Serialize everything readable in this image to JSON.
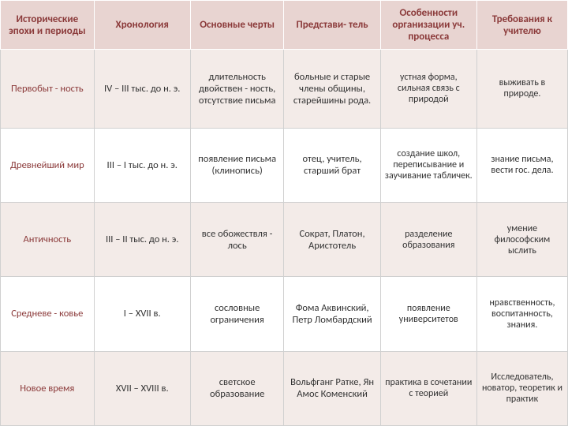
{
  "table": {
    "columns": [
      "Исторические эпохи и периоды",
      "Хронология",
      "Основные черты",
      "Представи- тель",
      "Особенности организации уч. процесса",
      "Требования к учителю"
    ],
    "col_widths": [
      "16.5%",
      "17%",
      "16.5%",
      "17%",
      "17%",
      "16%"
    ],
    "header_bg": "#e8d4d1",
    "header_color": "#8b3a3a",
    "row_even_bg": "#f3ebe8",
    "row_odd_bg": "#ffffff",
    "col0_color": "#8b3a3a",
    "text_color": "#333333",
    "header_fontsize": 13,
    "cell_fontsize": 12.5,
    "rows": [
      [
        "Первобыт - ность",
        "IV – III тыс. до н. э.",
        "длительность двойствен - ность, отсутствие письма",
        "больные и старые члены общины, старейшины рода.",
        "устная форма, сильная связь с природой",
        "выживать в природе."
      ],
      [
        "Древнейший мир",
        "III – I тыс. до н. э.",
        "появление письма (клинопись)",
        "отец, учитель, старший брат",
        "создание школ, переписывание и заучивание табличек.",
        "знание письма, вести гос. дела."
      ],
      [
        "Античность",
        "III – II тыс. до н. э.",
        "все обожествля - лось",
        "Сократ, Платон, Аристотель",
        "разделение образования",
        "умение философским ыслить"
      ],
      [
        "Средневе - ковье",
        "I – XVII в.",
        "сословные ограничения",
        "Фома Аквинский, Петр Ломбардский",
        "появление университетов",
        "нравственность, воспитанность, знания."
      ],
      [
        "Новое время",
        "XVII – XVIII в.",
        "светское образование",
        "Вольфганг Ратке, Ян Амос Коменский",
        "практика в сочетании с теорией",
        "Исследователь, новатор, теоретик и практик"
      ]
    ]
  }
}
